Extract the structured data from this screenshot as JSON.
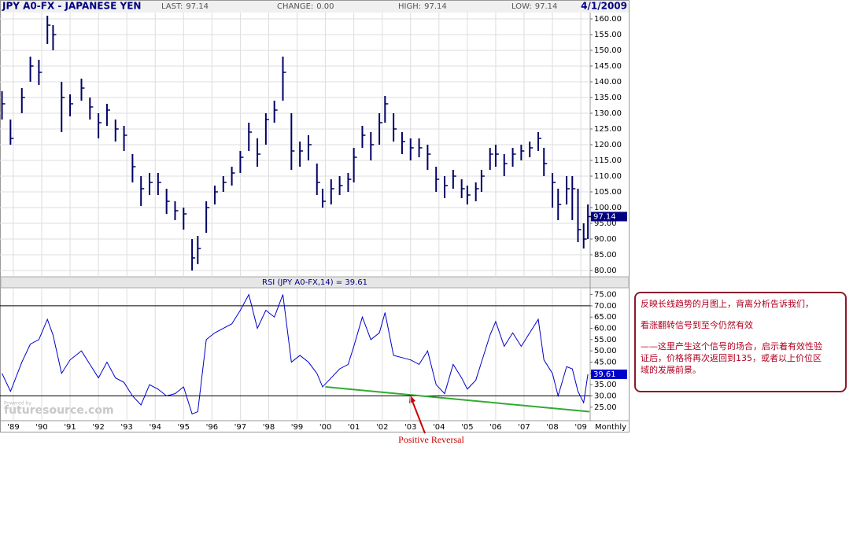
{
  "chart_data": [
    {
      "type": "ohlc",
      "title": "JPY A0-FX - JAPANESE YEN",
      "date": "4/1/2009",
      "stats": [
        {
          "label": "LAST:",
          "value": 97.14
        },
        {
          "label": "CHANGE:",
          "value": 0,
          "value_label": "0.00"
        },
        {
          "label": "HIGH:",
          "value": 97.14
        },
        {
          "label": "LOW:",
          "value": 97.14
        }
      ],
      "x": [
        1988.6,
        1988.9,
        1989.3,
        1989.6,
        1989.9,
        1990.2,
        1990.4,
        1990.7,
        1991.0,
        1991.4,
        1991.7,
        1992.0,
        1992.3,
        1992.6,
        1992.9,
        1993.2,
        1993.5,
        1993.8,
        1994.1,
        1994.4,
        1994.7,
        1995.0,
        1995.3,
        1995.5,
        1995.8,
        1996.1,
        1996.4,
        1996.7,
        1997.0,
        1997.3,
        1997.6,
        1997.9,
        1998.2,
        1998.5,
        1998.8,
        1999.1,
        1999.4,
        1999.7,
        1999.9,
        2000.2,
        2000.5,
        2000.8,
        2001.0,
        2001.3,
        2001.6,
        2001.9,
        2002.1,
        2002.4,
        2002.7,
        2003.0,
        2003.3,
        2003.6,
        2003.9,
        2004.2,
        2004.5,
        2004.8,
        2005.0,
        2005.3,
        2005.5,
        2005.8,
        2006.0,
        2006.3,
        2006.6,
        2006.9,
        2007.2,
        2007.5,
        2007.7,
        2008.0,
        2008.2,
        2008.5,
        2008.7,
        2008.9,
        2009.1,
        2009.25
      ],
      "high": [
        137,
        128,
        138,
        148,
        147,
        161,
        158,
        140,
        136,
        141,
        135,
        130,
        133,
        128,
        126,
        117,
        110,
        111,
        111,
        106,
        102,
        100,
        90,
        91,
        102,
        107,
        110,
        113,
        118,
        127,
        122,
        130,
        134,
        148,
        130,
        121,
        123,
        114,
        106,
        109,
        110,
        111,
        119,
        126,
        124,
        130,
        135.5,
        130,
        124,
        122,
        122,
        120,
        113,
        110,
        112,
        109,
        107,
        108,
        112,
        119,
        120,
        117,
        119,
        120,
        121,
        124,
        119,
        111,
        106,
        110,
        110,
        106,
        95,
        101
      ],
      "low": [
        128,
        120,
        130,
        140,
        139,
        152,
        150,
        124,
        129,
        134,
        128,
        122,
        126,
        121,
        118,
        108,
        100.5,
        104,
        104,
        98,
        96,
        93,
        80,
        82,
        92,
        101,
        105,
        107,
        111,
        118,
        113,
        120,
        127,
        134,
        112,
        113,
        115,
        104,
        100,
        101,
        104,
        105,
        108,
        119,
        115,
        120,
        127,
        121,
        117,
        115,
        116,
        112,
        105,
        103,
        106,
        103,
        101,
        102,
        105,
        112,
        113,
        110,
        113,
        115,
        116,
        118,
        110,
        100,
        96,
        101,
        96,
        89,
        87,
        90
      ],
      "close": [
        133,
        122,
        135,
        145,
        143,
        158,
        155,
        135,
        133,
        138,
        132,
        127,
        131,
        125,
        123,
        113,
        106,
        108,
        108,
        102,
        99,
        98,
        84,
        87,
        100,
        105,
        108,
        111,
        116,
        124,
        117,
        128,
        131,
        143,
        118,
        118,
        120,
        108,
        102,
        106,
        107,
        109,
        116,
        123,
        120,
        127,
        133,
        125,
        121,
        119,
        119,
        117,
        109,
        107,
        110,
        106,
        104,
        106,
        110,
        117,
        117,
        114,
        117,
        118,
        119,
        122,
        114,
        108,
        101,
        106,
        106,
        93,
        90,
        97.14
      ],
      "color": "#000066",
      "xlim": [
        1988.53,
        2009.33
      ],
      "ylim": [
        78,
        162
      ],
      "yticks": [
        {
          "value": 80,
          "label": "80.00"
        },
        {
          "value": 85,
          "label": "85.00"
        },
        {
          "value": 90,
          "label": "90.00"
        },
        {
          "value": 95,
          "label": "95.00"
        },
        {
          "value": 100,
          "label": "100.00"
        },
        {
          "value": 105,
          "label": "105.00"
        },
        {
          "value": 110,
          "label": "110.00"
        },
        {
          "value": 115,
          "label": "115.00"
        },
        {
          "value": 120,
          "label": "120.00"
        },
        {
          "value": 125,
          "label": "125.00"
        },
        {
          "value": 130,
          "label": "130.00"
        },
        {
          "value": 135,
          "label": "135.00"
        },
        {
          "value": 140,
          "label": "140.00"
        },
        {
          "value": 145,
          "label": "145.00"
        },
        {
          "value": 150,
          "label": "150.00"
        },
        {
          "value": 155,
          "label": "155.00"
        },
        {
          "value": 160,
          "label": "160.00"
        }
      ],
      "grid": true
    },
    {
      "type": "line",
      "title": "RSI (JPY A0-FX,14) = 39.61",
      "period_label": "Monthly",
      "x": [
        1988.6,
        1988.9,
        1989.3,
        1989.6,
        1989.9,
        1990.2,
        1990.4,
        1990.7,
        1991.0,
        1991.4,
        1991.7,
        1992.0,
        1992.3,
        1992.6,
        1992.9,
        1993.2,
        1993.5,
        1993.8,
        1994.1,
        1994.4,
        1994.7,
        1995.0,
        1995.3,
        1995.5,
        1995.8,
        1996.1,
        1996.4,
        1996.7,
        1997.0,
        1997.3,
        1997.6,
        1997.9,
        1998.2,
        1998.5,
        1998.8,
        1999.1,
        1999.4,
        1999.7,
        1999.9,
        2000.2,
        2000.5,
        2000.8,
        2001.0,
        2001.3,
        2001.6,
        2001.9,
        2002.1,
        2002.4,
        2002.7,
        2003.0,
        2003.3,
        2003.6,
        2003.9,
        2004.2,
        2004.5,
        2004.8,
        2005.0,
        2005.3,
        2005.5,
        2005.8,
        2006.0,
        2006.3,
        2006.6,
        2006.9,
        2007.2,
        2007.5,
        2007.7,
        2008.0,
        2008.2,
        2008.5,
        2008.7,
        2008.9,
        2009.1,
        2009.25
      ],
      "values": [
        40,
        32,
        45,
        53,
        55,
        64,
        57,
        40,
        46,
        50,
        44,
        38,
        45,
        38,
        36,
        30,
        26,
        35,
        33,
        30,
        31,
        34,
        22,
        23,
        55,
        58,
        60,
        62,
        68,
        75,
        60,
        68,
        65,
        75,
        45,
        48,
        45,
        40,
        34,
        38,
        42,
        44,
        52,
        65,
        55,
        58,
        67,
        48,
        47,
        46,
        44,
        50,
        35,
        31,
        44,
        38,
        33,
        37,
        45,
        57,
        63,
        52,
        58,
        52,
        58,
        64,
        46,
        40,
        30,
        43,
        42,
        32,
        27,
        39.61
      ],
      "color": "#0000cc",
      "xlim": [
        1988.53,
        2009.33
      ],
      "ylim": [
        19,
        78
      ],
      "yticks": [
        {
          "value": 25,
          "label": "25.00"
        },
        {
          "value": 30,
          "label": "30.00"
        },
        {
          "value": 35,
          "label": "35.00"
        },
        {
          "value": 40,
          "label": "40.00"
        },
        {
          "value": 45,
          "label": "45.00"
        },
        {
          "value": 50,
          "label": "50.00"
        },
        {
          "value": 55,
          "label": "55.00"
        },
        {
          "value": 60,
          "label": "60.00"
        },
        {
          "value": 65,
          "label": "65.00"
        },
        {
          "value": 70,
          "label": "70.00"
        },
        {
          "value": 75,
          "label": "75.00"
        }
      ],
      "levels": [
        70,
        30
      ],
      "trendline": {
        "x": [
          2000.0,
          2009.3
        ],
        "values": [
          34,
          23
        ],
        "color": "#33aa33"
      },
      "xticks": [
        {
          "value": 1989,
          "label": "'89"
        },
        {
          "value": 1990,
          "label": "'90"
        },
        {
          "value": 1991,
          "label": "'91"
        },
        {
          "value": 1992,
          "label": "'92"
        },
        {
          "value": 1993,
          "label": "'93"
        },
        {
          "value": 1994,
          "label": "'94"
        },
        {
          "value": 1995,
          "label": "'95"
        },
        {
          "value": 1996,
          "label": "'96"
        },
        {
          "value": 1997,
          "label": "'97"
        },
        {
          "value": 1998,
          "label": "'98"
        },
        {
          "value": 1999,
          "label": "'99"
        },
        {
          "value": 2000,
          "label": "'00"
        },
        {
          "value": 2001,
          "label": "'01"
        },
        {
          "value": 2002,
          "label": "'02"
        },
        {
          "value": 2003,
          "label": "'03"
        },
        {
          "value": 2004,
          "label": "'04"
        },
        {
          "value": 2005,
          "label": "'05"
        },
        {
          "value": 2006,
          "label": "'06"
        },
        {
          "value": 2007,
          "label": "'07"
        },
        {
          "value": 2008,
          "label": "'08"
        },
        {
          "value": 2009,
          "label": "'09"
        }
      ],
      "grid": true,
      "annotation": "Positive Reversal"
    }
  ],
  "watermark": {
    "small": "Powered by",
    "brand": "futuresource.com"
  },
  "note": {
    "lines": [
      "反映长线趋势的月图上，背离分析告诉我们，",
      "看涨翻转信号到至今仍然有效",
      "——这里产生这个信号的场合，启示着有效性验",
      "证后，价格将再次返回到135，或者以上价位区",
      "域的发展前景。"
    ]
  }
}
